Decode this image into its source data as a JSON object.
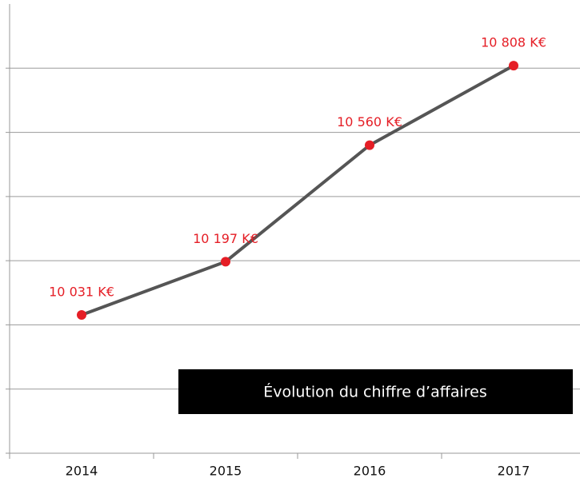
{
  "chart_data": {
    "type": "line",
    "title": "Évolution du chiffre d’affaires",
    "categories": [
      "2014",
      "2015",
      "2016",
      "2017"
    ],
    "series": [
      {
        "color": "#555555",
        "marker_color": "#e51e26",
        "values": [
          10031,
          10197,
          10560,
          10808
        ],
        "value_labels": [
          "10 031 K€",
          "10 197 K€",
          "10 560 K€",
          "10 808 K€"
        ]
      }
    ],
    "ylim": [
      9600,
      11000
    ],
    "yticks": [
      9800,
      10000,
      10200,
      10400,
      10600,
      10800
    ],
    "grid": true
  }
}
